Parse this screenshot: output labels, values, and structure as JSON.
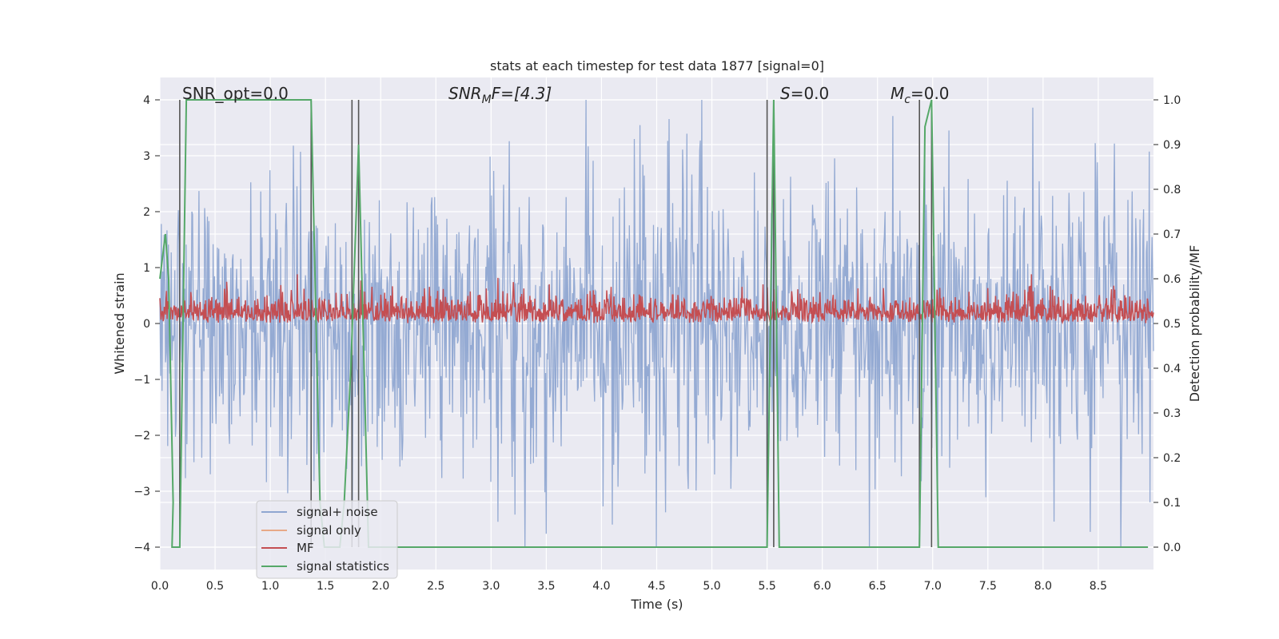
{
  "chart_data": {
    "type": "line",
    "title": "stats at each timestep for test data 1877 [signal=0]",
    "xlabel": "Time (s)",
    "ylabel_left": "Whitened strain",
    "ylabel_right": "Detection probability/MF",
    "xlim": [
      0.0,
      9.0
    ],
    "ylim_left": [
      -4.4,
      4.4
    ],
    "ylim_right": [
      -0.05,
      1.05
    ],
    "xticks": [
      "0.0",
      "0.5",
      "1.0",
      "1.5",
      "2.0",
      "2.5",
      "3.0",
      "3.5",
      "4.0",
      "4.5",
      "5.0",
      "5.5",
      "6.0",
      "6.5",
      "7.0",
      "7.5",
      "8.0",
      "8.5"
    ],
    "yticks_left": [
      "4",
      "3",
      "2",
      "1",
      "0",
      "−1",
      "−2",
      "−3",
      "−4"
    ],
    "yticks_right": [
      "1.0",
      "0.9",
      "0.8",
      "0.7",
      "0.6",
      "0.5",
      "0.4",
      "0.3",
      "0.2",
      "0.1",
      "0.0"
    ],
    "grid": true,
    "legend_position": "lower-left",
    "annotations": {
      "snr_opt": "SNR_opt=0.0",
      "snr_mf_main": "SNR",
      "snr_mf_sub": "M",
      "snr_mf_rest": "F=[4.3]",
      "s_main": "S",
      "s_rest": "=0.0",
      "mc_main": "M",
      "mc_sub": "c",
      "mc_rest": "=0.0"
    },
    "series": [
      {
        "name": "signal+ noise",
        "color": "#8fa6d1",
        "description_values": "Gaussian noise, approx. range -4 to 4 on left axis",
        "range": [
          -4.0,
          4.0
        ]
      },
      {
        "name": "signal only",
        "color": "#e7a987",
        "values": "0 (no signal)"
      },
      {
        "name": "MF",
        "color": "#c44e52",
        "range_right_axis": [
          0.5,
          0.6
        ]
      },
      {
        "name": "signal statistics",
        "color": "#55a868",
        "points": [
          [
            0.0,
            0.6
          ],
          [
            0.05,
            0.7
          ],
          [
            0.08,
            0.6
          ],
          [
            0.12,
            0.1
          ],
          [
            0.11,
            0.0
          ],
          [
            0.18,
            0.0
          ],
          [
            0.24,
            1.0
          ],
          [
            1.37,
            1.0
          ],
          [
            1.45,
            0.1
          ],
          [
            1.49,
            0.0
          ],
          [
            1.63,
            0.0
          ],
          [
            1.67,
            0.1
          ],
          [
            1.73,
            0.4
          ],
          [
            1.8,
            0.9
          ],
          [
            1.84,
            0.5
          ],
          [
            1.89,
            0.0
          ],
          [
            2.0,
            0.0
          ],
          [
            5.5,
            0.0
          ],
          [
            5.56,
            1.0
          ],
          [
            5.61,
            0.0
          ],
          [
            6.88,
            0.0
          ],
          [
            6.93,
            0.94
          ],
          [
            6.99,
            1.0
          ],
          [
            7.05,
            0.0
          ],
          [
            8.95,
            0.0
          ]
        ]
      }
    ],
    "vertical_lines_x": [
      0.18,
      1.37,
      1.74,
      1.8,
      5.5,
      5.56,
      6.88,
      6.99
    ]
  }
}
